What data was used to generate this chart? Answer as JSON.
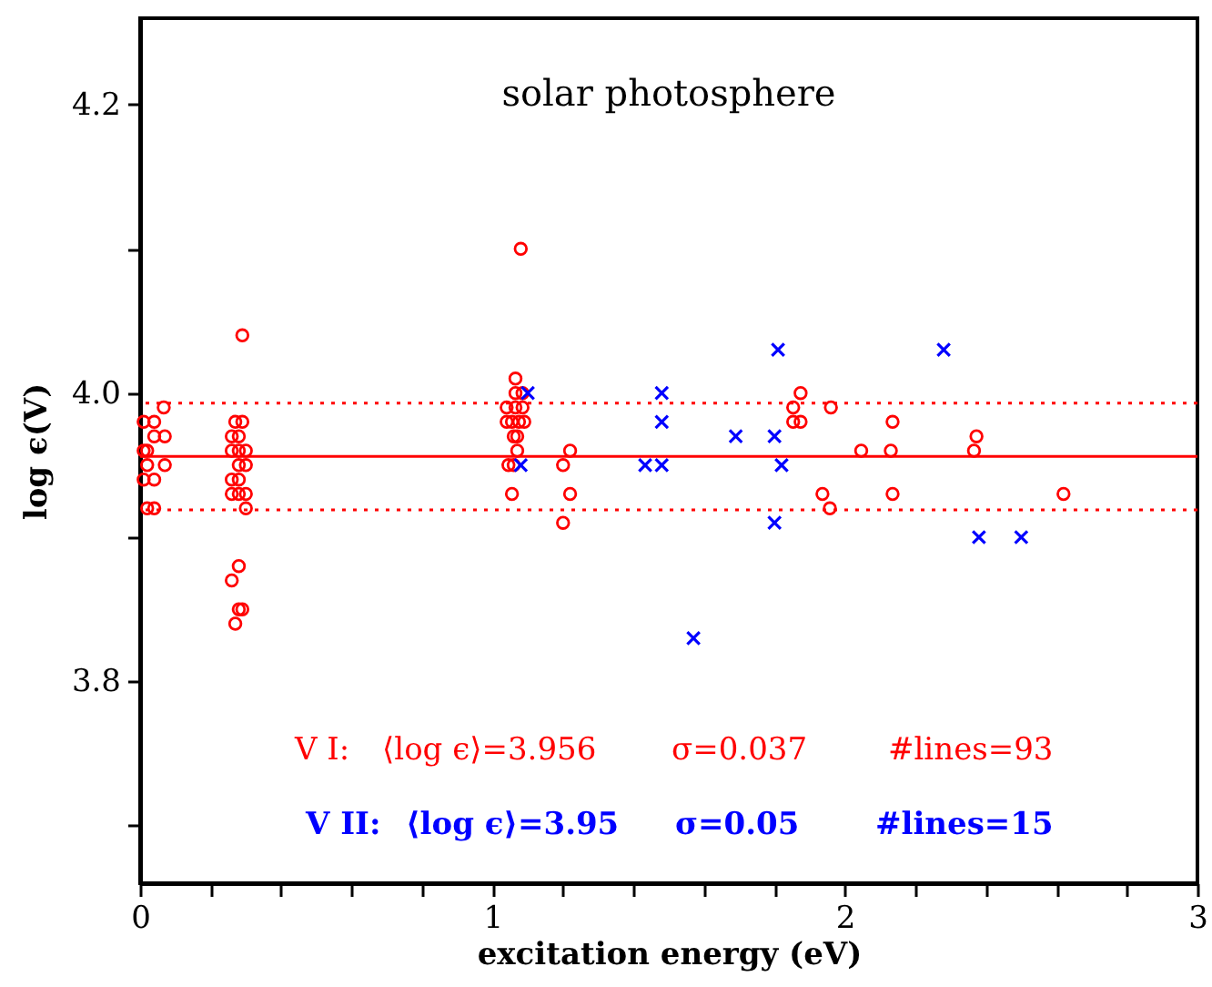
{
  "chart_data": {
    "type": "scatter",
    "title": "solar photosphere",
    "xlabel": "excitation energy (eV)",
    "ylabel": "log ϵ(V)",
    "xlim": [
      0,
      3
    ],
    "ylim": [
      3.66,
      4.26
    ],
    "xticks": [
      0,
      {
        "value": 0.2,
        "label": null
      },
      {
        "value": 0.4,
        "label": null
      },
      {
        "value": 0.6,
        "label": null
      },
      {
        "value": 0.8,
        "label": null
      },
      1,
      {
        "value": 1.2,
        "label": null
      },
      {
        "value": 1.4,
        "label": null
      },
      {
        "value": 1.6,
        "label": null
      },
      {
        "value": 1.8,
        "label": null
      },
      2,
      {
        "value": 2.2,
        "label": null
      },
      {
        "value": 2.4,
        "label": null
      },
      {
        "value": 2.6,
        "label": null
      },
      {
        "value": 2.8,
        "label": null
      },
      3
    ],
    "yticks": [
      {
        "value": 3.7,
        "label": null
      },
      {
        "value": 3.8,
        "label": "3.8"
      },
      {
        "value": 3.9,
        "label": null
      },
      {
        "value": 4.0,
        "label": "4.0"
      },
      {
        "value": 4.1,
        "label": null
      },
      {
        "value": 4.2,
        "label": "4.2"
      }
    ],
    "grid": false,
    "series": [
      {
        "color": "#ff0000",
        "marker": "circle",
        "x": [
          0.067,
          0.01,
          0.04,
          0.04,
          0.07,
          0.01,
          0.02,
          0.02,
          0.07,
          0.01,
          0.04,
          0.02,
          0.04,
          0.29,
          0.27,
          0.29,
          0.26,
          0.28,
          0.26,
          0.28,
          0.3,
          0.28,
          0.3,
          0.26,
          0.28,
          0.26,
          0.28,
          0.3,
          0.3,
          0.28,
          0.26,
          0.28,
          0.29,
          0.27,
          1.08,
          1.065,
          1.065,
          1.085,
          1.04,
          1.065,
          1.085,
          1.04,
          1.055,
          1.075,
          1.09,
          1.06,
          1.07,
          1.07,
          1.045,
          1.06,
          1.055,
          1.22,
          1.2,
          1.22,
          1.2,
          1.874,
          1.853,
          1.96,
          1.853,
          1.874,
          2.046,
          1.936,
          1.957,
          2.135,
          2.13,
          2.373,
          2.366,
          2.135,
          2.62
        ],
        "values": [
          3.99,
          3.98,
          3.98,
          3.97,
          3.97,
          3.96,
          3.96,
          3.95,
          3.95,
          3.94,
          3.94,
          3.92,
          3.92,
          4.04,
          3.98,
          3.98,
          3.97,
          3.97,
          3.96,
          3.96,
          3.96,
          3.95,
          3.95,
          3.94,
          3.94,
          3.93,
          3.93,
          3.93,
          3.92,
          3.88,
          3.87,
          3.85,
          3.85,
          3.84,
          4.1,
          4.01,
          4.0,
          4.0,
          3.99,
          3.99,
          3.99,
          3.98,
          3.98,
          3.98,
          3.98,
          3.97,
          3.97,
          3.96,
          3.95,
          3.95,
          3.93,
          3.96,
          3.95,
          3.93,
          3.91,
          4.0,
          3.99,
          3.99,
          3.98,
          3.98,
          3.96,
          3.93,
          3.92,
          3.98,
          3.96,
          3.97,
          3.96,
          3.93,
          3.93
        ]
      },
      {
        "color": "#0000ff",
        "marker": "cross",
        "x": [
          1.1,
          1.08,
          1.433,
          1.48,
          1.48,
          1.48,
          1.69,
          1.8,
          1.81,
          1.82,
          1.8,
          1.57,
          2.28,
          2.38,
          2.5
        ],
        "values": [
          4.0,
          3.95,
          3.95,
          3.95,
          4.0,
          3.98,
          3.97,
          3.97,
          4.03,
          3.95,
          3.91,
          3.83,
          4.03,
          3.9,
          3.9
        ]
      }
    ],
    "ref_lines": [
      {
        "axis": "y",
        "value": 3.956,
        "color": "#ff0000",
        "line_style": "solid"
      },
      {
        "axis": "y",
        "value": 3.993,
        "color": "#ff0000",
        "line_style": "dotted"
      },
      {
        "axis": "y",
        "value": 3.919,
        "color": "#ff0000",
        "line_style": "dotted"
      }
    ],
    "annotations": [
      "V I:",
      "⟨log ϵ⟩=3.956",
      "σ=0.037",
      "#lines=93",
      "V II:",
      "⟨log ϵ⟩=3.95",
      "σ=0.05",
      "#lines=15"
    ]
  }
}
